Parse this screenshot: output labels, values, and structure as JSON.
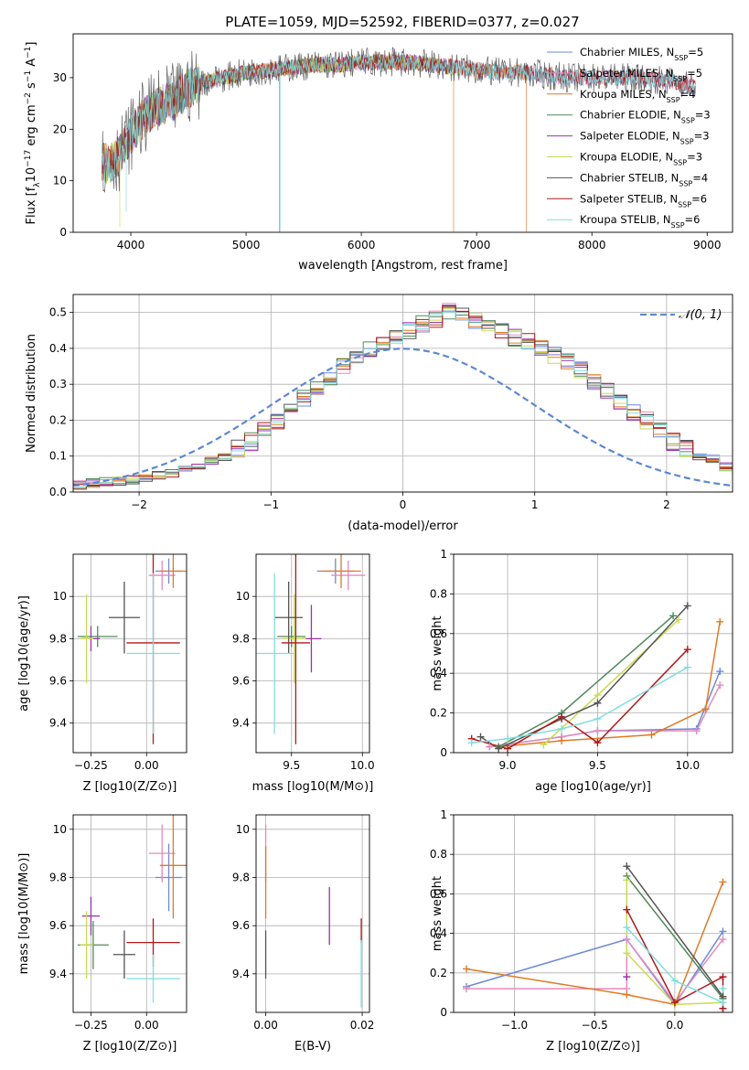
{
  "figure_title": "PLATE=1059, MJD=52592, FIBERID=0377, z=0.027",
  "colors": {
    "chabrier_miles": "#6a8bd9",
    "salpeter_miles": "#e58bbd",
    "kroupa_miles": "#e07a22",
    "chabrier_elodie": "#4f8a5a",
    "salpeter_elodie": "#9b30b0",
    "kroupa_elodie": "#c8dc50",
    "chabrier_stelib": "#555555",
    "salpeter_stelib": "#b01818",
    "kroupa_stelib": "#80dede",
    "gaussian": "#5b88d6",
    "grid": "#b0b0b0"
  },
  "legend_spectrum": [
    {
      "label": "Chabrier MILES, N",
      "sub": "SSP",
      "eq": "=5",
      "color": "#6a8bd9"
    },
    {
      "label": "Salpeter MILES, N",
      "sub": "SSP",
      "eq": "=5",
      "color": "#e58bbd"
    },
    {
      "label": "Kroupa MILES, N",
      "sub": "SSP",
      "eq": "=4",
      "color": "#e07a22"
    },
    {
      "label": "Chabrier ELODIE, N",
      "sub": "SSP",
      "eq": "=3",
      "color": "#4f8a5a"
    },
    {
      "label": "Salpeter ELODIE, N",
      "sub": "SSP",
      "eq": "=3",
      "color": "#9b30b0"
    },
    {
      "label": "Kroupa ELODIE, N",
      "sub": "SSP",
      "eq": "=3",
      "color": "#c8dc50"
    },
    {
      "label": "Chabrier STELIB, N",
      "sub": "SSP",
      "eq": "=4",
      "color": "#555555"
    },
    {
      "label": "Salpeter STELIB, N",
      "sub": "SSP",
      "eq": "=6",
      "color": "#b01818"
    },
    {
      "label": "Kroupa STELIB, N",
      "sub": "SSP",
      "eq": "=6",
      "color": "#80dede"
    }
  ],
  "legend_hist": {
    "label": "𝒩(0, 1)"
  },
  "chart_data": [
    {
      "id": "spectrum",
      "type": "line",
      "xlabel": "wavelength [Angstrom, rest frame]",
      "ylabel": "Flux [f",
      "ylabel_parts": [
        "Flux [f",
        "λ",
        "10",
        "−17",
        " erg cm",
        "−2",
        " s",
        "−1",
        " A",
        "−1",
        "]"
      ],
      "xlim": [
        3500,
        9220
      ],
      "ylim": [
        0,
        38.5
      ],
      "xticks": [
        4000,
        5000,
        6000,
        7000,
        8000,
        9000
      ],
      "yticks": [
        0,
        10,
        20,
        30
      ],
      "continuum": [
        [
          3750,
          14
        ],
        [
          3800,
          13
        ],
        [
          3900,
          15
        ],
        [
          4000,
          19
        ],
        [
          4100,
          22
        ],
        [
          4200,
          24
        ],
        [
          4300,
          25
        ],
        [
          4400,
          26
        ],
        [
          4500,
          28
        ],
        [
          4600,
          29
        ],
        [
          4700,
          29.5
        ],
        [
          4800,
          30
        ],
        [
          4900,
          30.5
        ],
        [
          5000,
          31
        ],
        [
          5200,
          31.5
        ],
        [
          5400,
          32
        ],
        [
          5600,
          32.5
        ],
        [
          5800,
          32.5
        ],
        [
          6000,
          33
        ],
        [
          6200,
          33
        ],
        [
          6400,
          33
        ],
        [
          6600,
          32.5
        ],
        [
          6800,
          32
        ],
        [
          7000,
          31.5
        ],
        [
          7200,
          31
        ],
        [
          7400,
          31
        ],
        [
          7600,
          30.5
        ],
        [
          7800,
          30
        ],
        [
          8000,
          30
        ],
        [
          8200,
          30
        ],
        [
          8400,
          30
        ],
        [
          8600,
          29.5
        ],
        [
          8800,
          29
        ],
        [
          8900,
          28
        ]
      ],
      "dips": [
        {
          "x": 3905,
          "y": 1,
          "series": "kroupa_elodie"
        },
        {
          "x": 3960,
          "y": 4,
          "series": "kroupa_stelib"
        },
        {
          "x": 5290,
          "y": 0,
          "series": "chabrier_miles"
        },
        {
          "x": 5298,
          "y": 0,
          "series": "kroupa_stelib"
        },
        {
          "x": 6800,
          "y": 0,
          "series": "kroupa_miles"
        },
        {
          "x": 7430,
          "y": 0,
          "series": "kroupa_miles"
        }
      ]
    },
    {
      "id": "residual_hist",
      "type": "step",
      "xlabel": "(data-model)/error",
      "ylabel": "Normed distribution",
      "xlim": [
        -2.5,
        2.5
      ],
      "ylim": [
        0,
        0.55
      ],
      "xticks": [
        -2,
        -1,
        0,
        1,
        2
      ],
      "xtick_labels": [
        "−2",
        "−1",
        "0",
        "1",
        "2"
      ],
      "yticks": [
        0.0,
        0.1,
        0.2,
        0.3,
        0.4,
        0.5
      ],
      "ytick_labels": [
        "0.0",
        "0.1",
        "0.2",
        "0.3",
        "0.4",
        "0.5"
      ],
      "bin_width": 0.1,
      "base_heights": [
        0.02,
        0.025,
        0.03,
        0.03,
        0.035,
        0.04,
        0.045,
        0.05,
        0.06,
        0.07,
        0.09,
        0.1,
        0.12,
        0.14,
        0.17,
        0.2,
        0.23,
        0.26,
        0.29,
        0.32,
        0.35,
        0.38,
        0.4,
        0.41,
        0.43,
        0.45,
        0.47,
        0.48,
        0.5,
        0.49,
        0.48,
        0.47,
        0.45,
        0.43,
        0.42,
        0.4,
        0.38,
        0.36,
        0.34,
        0.31,
        0.28,
        0.25,
        0.22,
        0.2,
        0.17,
        0.14,
        0.12,
        0.1,
        0.09,
        0.07,
        0.06,
        0.05,
        0.05,
        0.04,
        0.035,
        0.03,
        0.03,
        0.025,
        0.025,
        0.02
      ]
    },
    {
      "id": "age_vs_Z",
      "type": "errorbar",
      "xlabel": "Z [log10(Z/Z⊙)]",
      "ylabel": "age  [log10(age/yr)]",
      "xlim": [
        -0.33,
        0.18
      ],
      "ylim": [
        9.26,
        10.2
      ],
      "xticks": [
        -0.25,
        0.0
      ],
      "xtick_labels": [
        "−0.25",
        "0.00"
      ],
      "yticks": [
        9.4,
        9.6,
        9.8,
        10.0
      ],
      "points": [
        {
          "s": "chabrier_miles",
          "x": 0.1,
          "xe": 0.06,
          "y": 10.12,
          "ye": 0.06
        },
        {
          "s": "salpeter_miles",
          "x": 0.07,
          "xe": 0.06,
          "y": 10.1,
          "ye": 0.07
        },
        {
          "s": "kroupa_miles",
          "x": 0.12,
          "xe": 0.06,
          "y": 10.12,
          "ye": 0.08
        },
        {
          "s": "chabrier_elodie",
          "x": -0.22,
          "xe": 0.09,
          "y": 9.81,
          "ye": 0.05
        },
        {
          "s": "salpeter_elodie",
          "x": -0.25,
          "xe": 0.04,
          "y": 9.8,
          "ye": 0.06
        },
        {
          "s": "kroupa_elodie",
          "x": -0.27,
          "xe": 0.03,
          "y": 9.8,
          "ye": 0.21
        },
        {
          "s": "chabrier_stelib",
          "x": -0.1,
          "xe": 0.07,
          "y": 9.9,
          "ye": 0.17
        },
        {
          "s": "salpeter_stelib",
          "x": 0.03,
          "xe": 0.12,
          "y": 9.78,
          "ye": 0.48
        },
        {
          "s": "kroupa_stelib",
          "x": 0.03,
          "xe": 0.12,
          "y": 9.73,
          "ye": 0.38
        }
      ]
    },
    {
      "id": "age_vs_mass",
      "type": "errorbar",
      "xlabel": "mass [log10(M/M⊙)]",
      "ylabel": "",
      "xlim": [
        9.25,
        10.05
      ],
      "ylim": [
        9.26,
        10.2
      ],
      "xticks": [
        9.5,
        10.0
      ],
      "xtick_labels": [
        "9.5",
        "10.0"
      ],
      "yticks": [
        9.4,
        9.6,
        9.8,
        10.0
      ],
      "points": [
        {
          "s": "chabrier_miles",
          "x": 9.81,
          "xe": 0.13,
          "y": 10.12,
          "ye": 0.06
        },
        {
          "s": "salpeter_miles",
          "x": 9.9,
          "xe": 0.12,
          "y": 10.1,
          "ye": 0.07
        },
        {
          "s": "kroupa_miles",
          "x": 9.85,
          "xe": 0.14,
          "y": 10.12,
          "ye": 0.08
        },
        {
          "s": "chabrier_elodie",
          "x": 9.5,
          "xe": 0.1,
          "y": 9.81,
          "ye": 0.05
        },
        {
          "s": "salpeter_elodie",
          "x": 9.64,
          "xe": 0.07,
          "y": 9.8,
          "ye": 0.16
        },
        {
          "s": "kroupa_elodie",
          "x": 9.52,
          "xe": 0.08,
          "y": 9.8,
          "ye": 0.21
        },
        {
          "s": "chabrier_stelib",
          "x": 9.48,
          "xe": 0.1,
          "y": 9.9,
          "ye": 0.17
        },
        {
          "s": "salpeter_stelib",
          "x": 9.53,
          "xe": 0.1,
          "y": 9.78,
          "ye": 0.48
        },
        {
          "s": "kroupa_stelib",
          "x": 9.38,
          "xe": 0.14,
          "y": 9.73,
          "ye": 0.38
        }
      ]
    },
    {
      "id": "weight_vs_age",
      "type": "line",
      "xlabel": "age  [log10(age/yr)]",
      "ylabel": "mass weight",
      "xlim": [
        8.7,
        10.25
      ],
      "ylim": [
        0,
        1.0
      ],
      "xticks": [
        9.0,
        9.5,
        10.0
      ],
      "xtick_labels": [
        "9.0",
        "9.5",
        "10.0"
      ],
      "yticks": [
        0.0,
        0.2,
        0.4,
        0.6,
        0.8,
        1.0
      ],
      "series": [
        {
          "s": "chabrier_miles",
          "x": [
            8.9,
            9.3,
            9.5,
            10.05,
            10.18
          ],
          "y": [
            0.03,
            0.08,
            0.11,
            0.12,
            0.41
          ]
        },
        {
          "s": "salpeter_miles",
          "x": [
            8.9,
            9.3,
            9.5,
            10.05,
            10.18
          ],
          "y": [
            0.03,
            0.08,
            0.11,
            0.11,
            0.34
          ]
        },
        {
          "s": "kroupa_miles",
          "x": [
            8.95,
            9.3,
            9.8,
            10.1,
            10.18
          ],
          "y": [
            0.03,
            0.06,
            0.09,
            0.22,
            0.66
          ]
        },
        {
          "s": "chabrier_elodie",
          "x": [
            8.95,
            9.3,
            9.92
          ],
          "y": [
            0.03,
            0.2,
            0.69
          ]
        },
        {
          "s": "salpeter_elodie",
          "x": [
            9.3
          ],
          "y": [
            0.18
          ]
        },
        {
          "s": "kroupa_elodie",
          "x": [
            9.2,
            9.5,
            9.95
          ],
          "y": [
            0.04,
            0.29,
            0.67
          ]
        },
        {
          "s": "chabrier_stelib",
          "x": [
            8.85,
            8.95,
            9.3,
            9.5,
            10.0
          ],
          "y": [
            0.08,
            0.02,
            0.17,
            0.25,
            0.74
          ]
        },
        {
          "s": "salpeter_stelib",
          "x": [
            8.8,
            9.0,
            9.3,
            9.5,
            10.0
          ],
          "y": [
            0.07,
            0.02,
            0.18,
            0.05,
            0.52
          ]
        },
        {
          "s": "kroupa_stelib",
          "x": [
            8.8,
            9.0,
            9.3,
            9.5,
            10.0
          ],
          "y": [
            0.05,
            0.07,
            0.12,
            0.17,
            0.43
          ]
        }
      ]
    },
    {
      "id": "mass_vs_Z",
      "type": "errorbar",
      "xlabel": "Z [log10(Z/Z⊙)]",
      "ylabel": "mass [log10(M/M⊙)]",
      "xlim": [
        -0.33,
        0.18
      ],
      "ylim": [
        9.24,
        10.06
      ],
      "xticks": [
        -0.25,
        0.0
      ],
      "xtick_labels": [
        "−0.25",
        "0.00"
      ],
      "yticks": [
        9.4,
        9.6,
        9.8,
        10.0
      ],
      "points": [
        {
          "s": "chabrier_miles",
          "x": 0.1,
          "xe": 0.06,
          "y": 9.8,
          "ye": 0.14
        },
        {
          "s": "salpeter_miles",
          "x": 0.07,
          "xe": 0.06,
          "y": 9.9,
          "ye": 0.12
        },
        {
          "s": "kroupa_miles",
          "x": 0.12,
          "xe": 0.06,
          "y": 9.85,
          "ye": 0.22
        },
        {
          "s": "chabrier_elodie",
          "x": -0.24,
          "xe": 0.07,
          "y": 9.52,
          "ye": 0.1
        },
        {
          "s": "salpeter_elodie",
          "x": -0.25,
          "xe": 0.04,
          "y": 9.64,
          "ye": 0.08
        },
        {
          "s": "kroupa_elodie",
          "x": -0.27,
          "xe": 0.03,
          "y": 9.52,
          "ye": 0.14
        },
        {
          "s": "chabrier_stelib",
          "x": -0.1,
          "xe": 0.05,
          "y": 9.48,
          "ye": 0.1
        },
        {
          "s": "salpeter_stelib",
          "x": 0.03,
          "xe": 0.12,
          "y": 9.53,
          "ye": 0.1
        },
        {
          "s": "kroupa_stelib",
          "x": 0.03,
          "xe": 0.12,
          "y": 9.38,
          "ye": 0.1
        }
      ]
    },
    {
      "id": "mass_vs_ebv",
      "type": "errorbar",
      "xlabel": "E(B-V)",
      "ylabel": "",
      "xlim": [
        -0.002,
        0.0215
      ],
      "ylim": [
        9.24,
        10.06
      ],
      "xticks": [
        0.0,
        0.02
      ],
      "xtick_labels": [
        "0.00",
        "0.02"
      ],
      "yticks": [
        9.4,
        9.6,
        9.8,
        10.0
      ],
      "points": [
        {
          "s": "salpeter_miles",
          "x": 0.0,
          "xe": 0,
          "y": 9.9,
          "ye": 0.12
        },
        {
          "s": "kroupa_miles",
          "x": 0.0,
          "xe": 0,
          "y": 9.78,
          "ye": 0.15
        },
        {
          "s": "chabrier_stelib",
          "x": 0.0,
          "xe": 0,
          "y": 9.48,
          "ye": 0.1
        },
        {
          "s": "salpeter_elodie",
          "x": 0.0132,
          "xe": 0,
          "y": 9.64,
          "ye": 0.12
        },
        {
          "s": "salpeter_stelib",
          "x": 0.0198,
          "xe": 0,
          "y": 9.58,
          "ye": 0.05
        },
        {
          "s": "kroupa_stelib",
          "x": 0.0198,
          "xe": 0,
          "y": 9.4,
          "ye": 0.14
        }
      ]
    },
    {
      "id": "weight_vs_Z",
      "type": "line",
      "xlabel": "Z [log10(Z/Z⊙)]",
      "ylabel": "mass weight",
      "xlim": [
        -1.38,
        0.36
      ],
      "ylim": [
        0,
        1.0
      ],
      "xticks": [
        -1.0,
        -0.5,
        0.0
      ],
      "xtick_labels": [
        "−1.0",
        "−0.5",
        "0.0"
      ],
      "yticks": [
        0.0,
        0.2,
        0.4,
        0.6,
        0.8,
        1.0
      ],
      "series": [
        {
          "s": "chabrier_miles",
          "x": [
            -1.3,
            -0.3,
            0.0,
            0.3
          ],
          "y": [
            0.13,
            0.37,
            0.04,
            0.41
          ]
        },
        {
          "s": "salpeter_miles",
          "x": [
            -1.3,
            -0.3,
            -0.3,
            0.0,
            0.3
          ],
          "y": [
            0.12,
            0.12,
            0.37,
            0.05,
            0.37
          ]
        },
        {
          "s": "kroupa_miles",
          "x": [
            -1.3,
            -0.3,
            0.0,
            0.3
          ],
          "y": [
            0.22,
            0.09,
            0.04,
            0.66
          ]
        },
        {
          "s": "chabrier_elodie",
          "x": [
            -0.3,
            0.3
          ],
          "y": [
            0.69,
            0.07
          ]
        },
        {
          "s": "salpeter_elodie",
          "x": [
            -0.3
          ],
          "y": [
            0.18
          ]
        },
        {
          "s": "kroupa_elodie",
          "x": [
            -0.3,
            -0.3,
            0.0,
            0.3
          ],
          "y": [
            0.67,
            0.3,
            0.04,
            0.05
          ]
        },
        {
          "s": "chabrier_stelib",
          "x": [
            -0.3,
            0.3,
            0.3
          ],
          "y": [
            0.74,
            0.08,
            0.02
          ]
        },
        {
          "s": "salpeter_stelib",
          "x": [
            -0.3,
            0.0,
            0.3,
            0.3
          ],
          "y": [
            0.52,
            0.05,
            0.18,
            0.02
          ]
        },
        {
          "s": "kroupa_stelib",
          "x": [
            -0.3,
            0.0,
            0.3,
            0.3
          ],
          "y": [
            0.43,
            0.16,
            0.05,
            0.12
          ]
        }
      ]
    }
  ]
}
